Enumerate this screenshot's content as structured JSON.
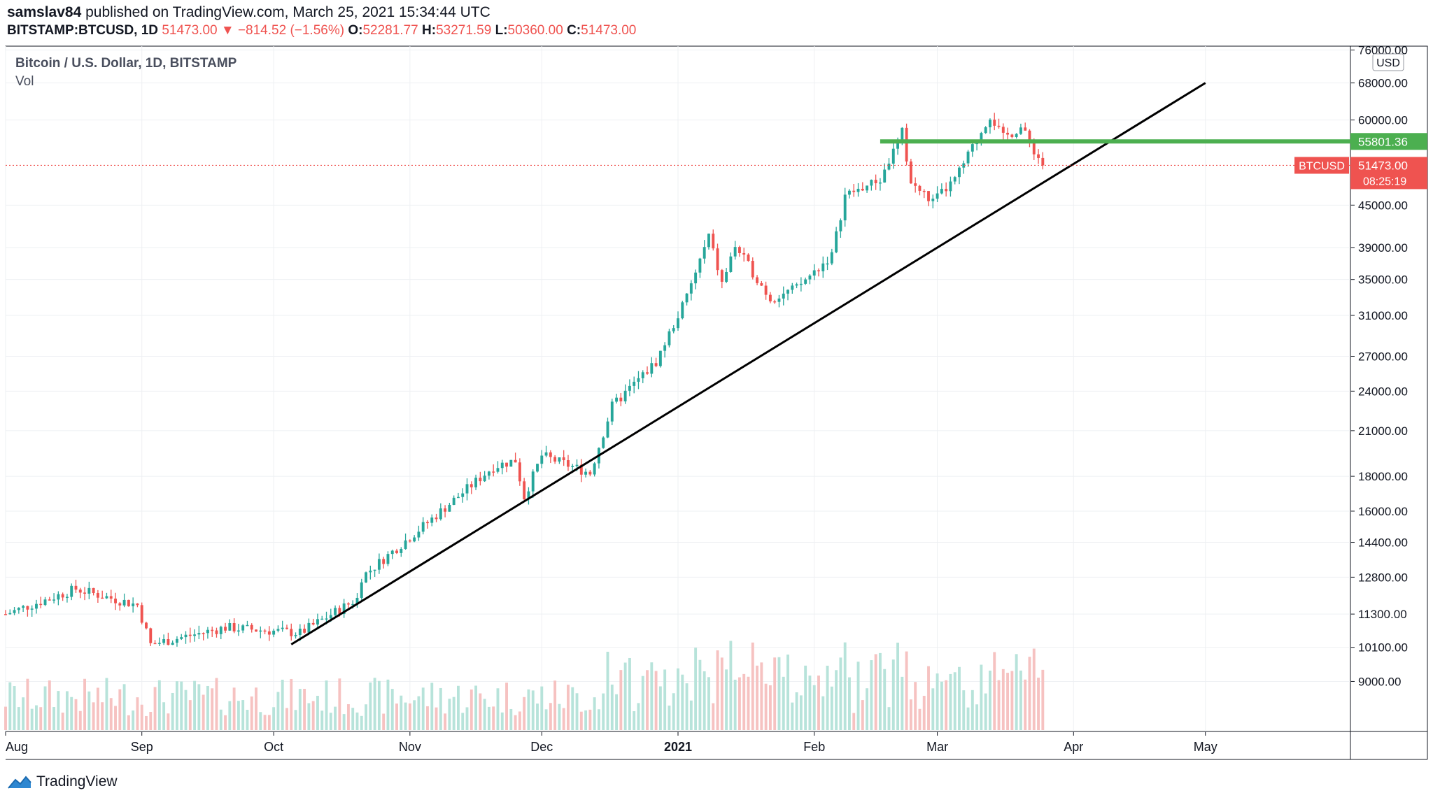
{
  "header": {
    "publisher_user": "samslav84",
    "publisher_text": "published on TradingView.com, March 25, 2021 15:34:44 UTC",
    "symbol": "BITSTAMP:BTCUSD, 1D",
    "last": "51473.00",
    "change": "−814.52 (−1.56%)",
    "open_label": "O:",
    "open": "52281.77",
    "high_label": "H:",
    "high": "53271.59",
    "low_label": "L:",
    "low": "50360.00",
    "close_label": "C:",
    "close": "51473.00"
  },
  "legend": {
    "title": "Bitcoin / U.S. Dollar, 1D, BITSTAMP",
    "vol": "Vol"
  },
  "footer": {
    "brand": "TradingView"
  },
  "colors": {
    "up": "#26a69a",
    "down": "#ef5350",
    "vol_up": "#b7e3da",
    "vol_down": "#f6c2c1",
    "support_line": "#4caf50",
    "trend_line": "#000000",
    "grid": "#eef0f3",
    "axis_text": "#131722"
  },
  "chart_data": {
    "type": "candlestick",
    "price_scale": "log",
    "currency_label": "USD",
    "y_ticks": [
      76000,
      68000,
      60000,
      55801.36,
      51473.0,
      45000,
      39000,
      35000,
      31000,
      27000,
      24000,
      21000,
      18000,
      16000,
      14400,
      12800,
      11300,
      10100,
      9000
    ],
    "y_tick_labels": [
      "76000.00",
      "68000.00",
      "60000.00",
      "45000.00",
      "39000.00",
      "35000.00",
      "31000.00",
      "27000.00",
      "24000.00",
      "21000.00",
      "18000.00",
      "16000.00",
      "14400.00",
      "12800.00",
      "11300.00",
      "10100.00",
      "9000.00"
    ],
    "x_labels": [
      "Aug",
      "Sep",
      "Oct",
      "Nov",
      "Dec",
      "2021",
      "Feb",
      "Mar",
      "Apr",
      "May"
    ],
    "x_label_dates": [
      "2020-08-01",
      "2020-09-01",
      "2020-10-01",
      "2020-11-01",
      "2020-12-01",
      "2021-01-01",
      "2021-02-01",
      "2021-03-01",
      "2021-04-01",
      "2021-05-01"
    ],
    "x_range": [
      "2020-08-01",
      "2021-06-03"
    ],
    "y_range": [
      7600,
      77000
    ],
    "last_price_badge": {
      "symbol": "BTCUSD",
      "value": "51473.00",
      "countdown": "08:25:19"
    },
    "support_level": {
      "value": 55801.36,
      "label": "55801.36",
      "from": "2021-02-16",
      "to": "2021-06-03"
    },
    "trend_line": {
      "from": [
        "2020-10-05",
        10200
      ],
      "to": [
        "2021-05-01",
        68000
      ]
    },
    "price_path": [
      [
        "2020-08-01",
        11300
      ],
      [
        "2020-08-17",
        12300
      ],
      [
        "2020-08-31",
        11650
      ],
      [
        "2020-09-03",
        10200
      ],
      [
        "2020-09-20",
        10800
      ],
      [
        "2020-10-07",
        10600
      ],
      [
        "2020-10-20",
        11900
      ],
      [
        "2020-10-21",
        12800
      ],
      [
        "2020-11-05",
        15400
      ],
      [
        "2020-11-20",
        18600
      ],
      [
        "2020-11-25",
        19000
      ],
      [
        "2020-11-27",
        16800
      ],
      [
        "2020-12-01",
        19300
      ],
      [
        "2020-12-12",
        18200
      ],
      [
        "2020-12-17",
        22800
      ],
      [
        "2020-12-27",
        26500
      ],
      [
        "2021-01-03",
        33000
      ],
      [
        "2021-01-08",
        40500
      ],
      [
        "2021-01-11",
        34500
      ],
      [
        "2021-01-14",
        39200
      ],
      [
        "2021-01-22",
        32800
      ],
      [
        "2021-01-28",
        34000
      ],
      [
        "2021-02-05",
        38000
      ],
      [
        "2021-02-08",
        46500
      ],
      [
        "2021-02-16",
        49000
      ],
      [
        "2021-02-21",
        57500
      ],
      [
        "2021-02-23",
        48500
      ],
      [
        "2021-02-28",
        45500
      ],
      [
        "2021-03-05",
        49000
      ],
      [
        "2021-03-13",
        61000
      ],
      [
        "2021-03-16",
        56500
      ],
      [
        "2021-03-20",
        58500
      ],
      [
        "2021-03-25",
        51473
      ]
    ]
  }
}
